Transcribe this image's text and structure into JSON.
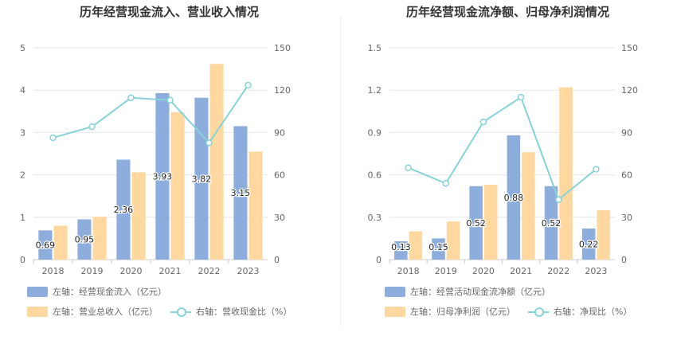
{
  "chart_data": [
    {
      "type": "bar+line",
      "title": "历年经营现金流入、营业收入情况",
      "categories": [
        "2018",
        "2019",
        "2020",
        "2021",
        "2022",
        "2023"
      ],
      "ylim_left": [
        0,
        5
      ],
      "ylim_right": [
        0,
        150
      ],
      "left_ticks": [
        "0",
        "1",
        "2",
        "3",
        "4",
        "5"
      ],
      "right_ticks": [
        "0",
        "30",
        "60",
        "90",
        "120",
        "150"
      ],
      "series": [
        {
          "name": "左轴：经营现金流入（亿元）",
          "axis": "left",
          "kind": "bar",
          "color": "#8daedc",
          "values": [
            0.69,
            0.95,
            2.36,
            3.93,
            3.82,
            3.15
          ],
          "labels": [
            "0.69",
            "0.95",
            "2.36",
            "3.93",
            "3.82",
            "3.15"
          ]
        },
        {
          "name": "左轴：营业总收入（亿元）",
          "axis": "left",
          "kind": "bar",
          "color": "#fed89f",
          "values": [
            0.8,
            1.01,
            2.06,
            3.48,
            4.62,
            2.55
          ]
        },
        {
          "name": "右轴：营收现金比（%）",
          "axis": "right",
          "kind": "line",
          "color": "#86d3d7",
          "values": [
            86.3,
            94.1,
            114.6,
            112.9,
            82.7,
            123.5
          ]
        }
      ]
    },
    {
      "type": "bar+line",
      "title": "历年经营现金流净额、归母净利润情况",
      "categories": [
        "2018",
        "2019",
        "2020",
        "2021",
        "2022",
        "2023"
      ],
      "ylim_left": [
        0,
        1.5
      ],
      "ylim_right": [
        0,
        150
      ],
      "left_ticks": [
        "0",
        "0.3",
        "0.6",
        "0.9",
        "1.2",
        "1.5"
      ],
      "right_ticks": [
        "0",
        "30",
        "60",
        "90",
        "120",
        "150"
      ],
      "series": [
        {
          "name": "左轴：经营活动现金流净额（亿元）",
          "axis": "left",
          "kind": "bar",
          "color": "#8daedc",
          "values": [
            0.13,
            0.15,
            0.52,
            0.88,
            0.52,
            0.22
          ],
          "labels": [
            "0.13",
            "0.15",
            "0.52",
            "0.88",
            "0.52",
            "0.22"
          ]
        },
        {
          "name": "左轴：归母净利润（亿元）",
          "axis": "left",
          "kind": "bar",
          "color": "#fed89f",
          "values": [
            0.2,
            0.27,
            0.53,
            0.76,
            1.22,
            0.35
          ]
        },
        {
          "name": "右轴：净现比（%）",
          "axis": "right",
          "kind": "line",
          "color": "#86d3d7",
          "values": [
            65,
            54,
            97.5,
            115,
            42.5,
            64
          ]
        }
      ]
    }
  ]
}
